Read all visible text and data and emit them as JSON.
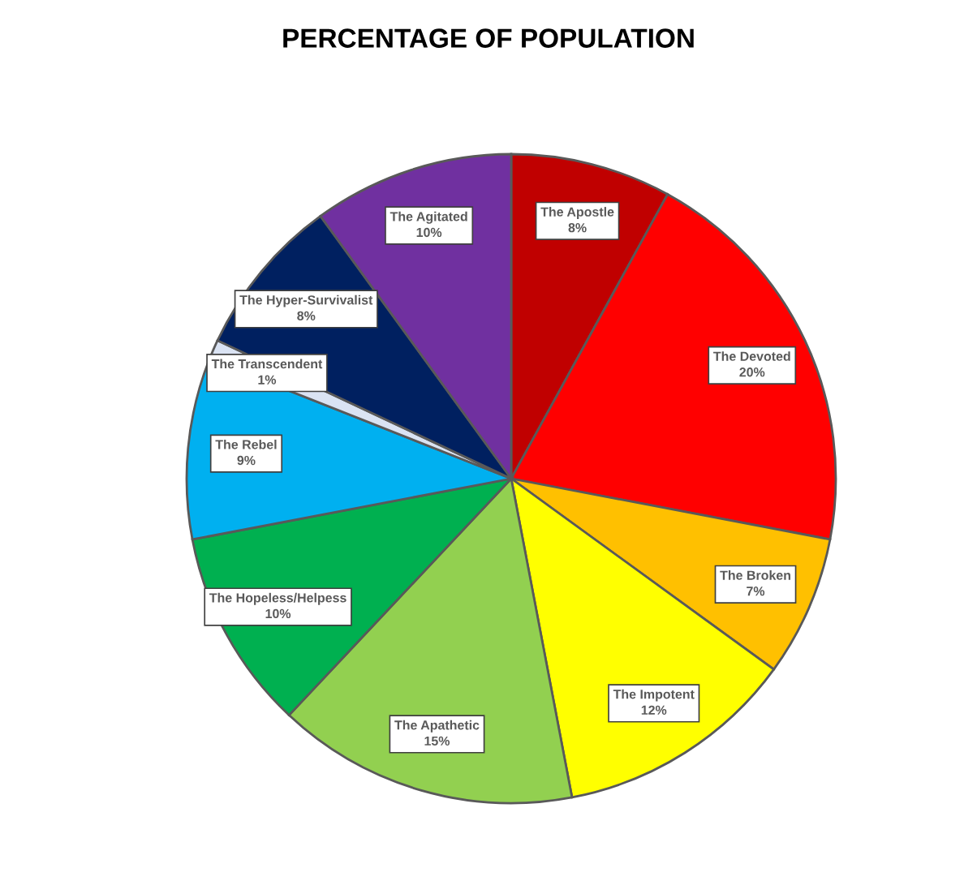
{
  "chart_data": {
    "type": "pie",
    "title": "PERCENTAGE OF POPULATION",
    "categories": [
      "The Apostle",
      "The Devoted",
      "The Broken",
      "The Impotent",
      "The Apathetic",
      "The Hopeless/Helpess",
      "The Rebel",
      "The Transcendent",
      "The Hyper-Survivalist",
      "The Agitated"
    ],
    "values": [
      8,
      20,
      7,
      12,
      15,
      10,
      9,
      1,
      8,
      10
    ],
    "value_labels": [
      "8%",
      "20%",
      "7%",
      "12%",
      "15%",
      "10%",
      "9%",
      "1%",
      "8%",
      "10%"
    ],
    "colors": [
      "#c00000",
      "#ff0000",
      "#ffc000",
      "#ffff00",
      "#92d050",
      "#00b050",
      "#00b0f0",
      "#dae3f3",
      "#002060",
      "#7030a0"
    ],
    "legend": false
  }
}
